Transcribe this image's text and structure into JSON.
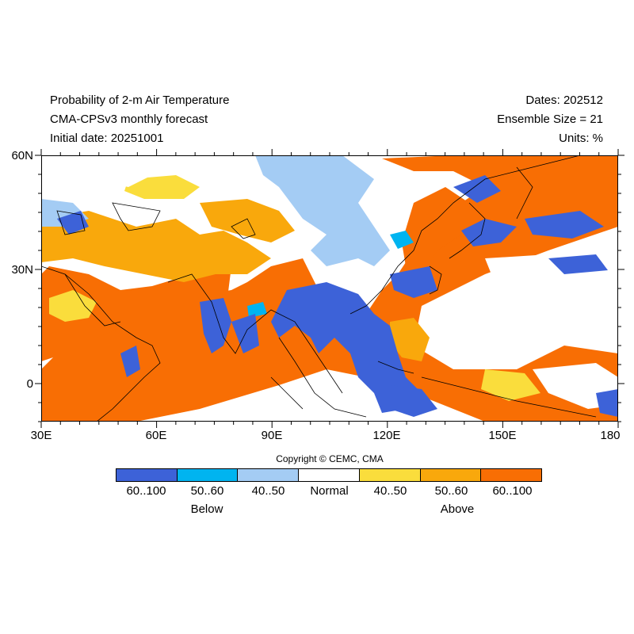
{
  "header": {
    "title": "Probability of 2-m Air Temperature",
    "model": "CMA-CPSv3 monthly forecast",
    "initial_date": "Initial date: 20251001",
    "dates": "Dates: 202512",
    "ensemble": "Ensemble Size = 21",
    "units": "Units: %"
  },
  "axes": {
    "y_ticks": [
      "60N",
      "30N",
      "0"
    ],
    "x_ticks": [
      "30E",
      "60E",
      "90E",
      "120E",
      "150E",
      "180"
    ]
  },
  "map": {
    "lon_range": [
      30,
      180
    ],
    "lat_range": [
      -10,
      60
    ]
  },
  "copyright": "Copyright © CEMC, CMA",
  "legend": {
    "bins": [
      {
        "label": "60..100",
        "color": "#3d62d8"
      },
      {
        "label": "50..60",
        "color": "#00b4f0"
      },
      {
        "label": "40..50",
        "color": "#a4ccf4"
      },
      {
        "label": "Normal",
        "color": "#ffffff"
      },
      {
        "label": "40..50",
        "color": "#fadd3c"
      },
      {
        "label": "50..60",
        "color": "#f9a80c"
      },
      {
        "label": "60..100",
        "color": "#f86e04"
      }
    ],
    "below_label": "Below",
    "above_label": "Above"
  }
}
